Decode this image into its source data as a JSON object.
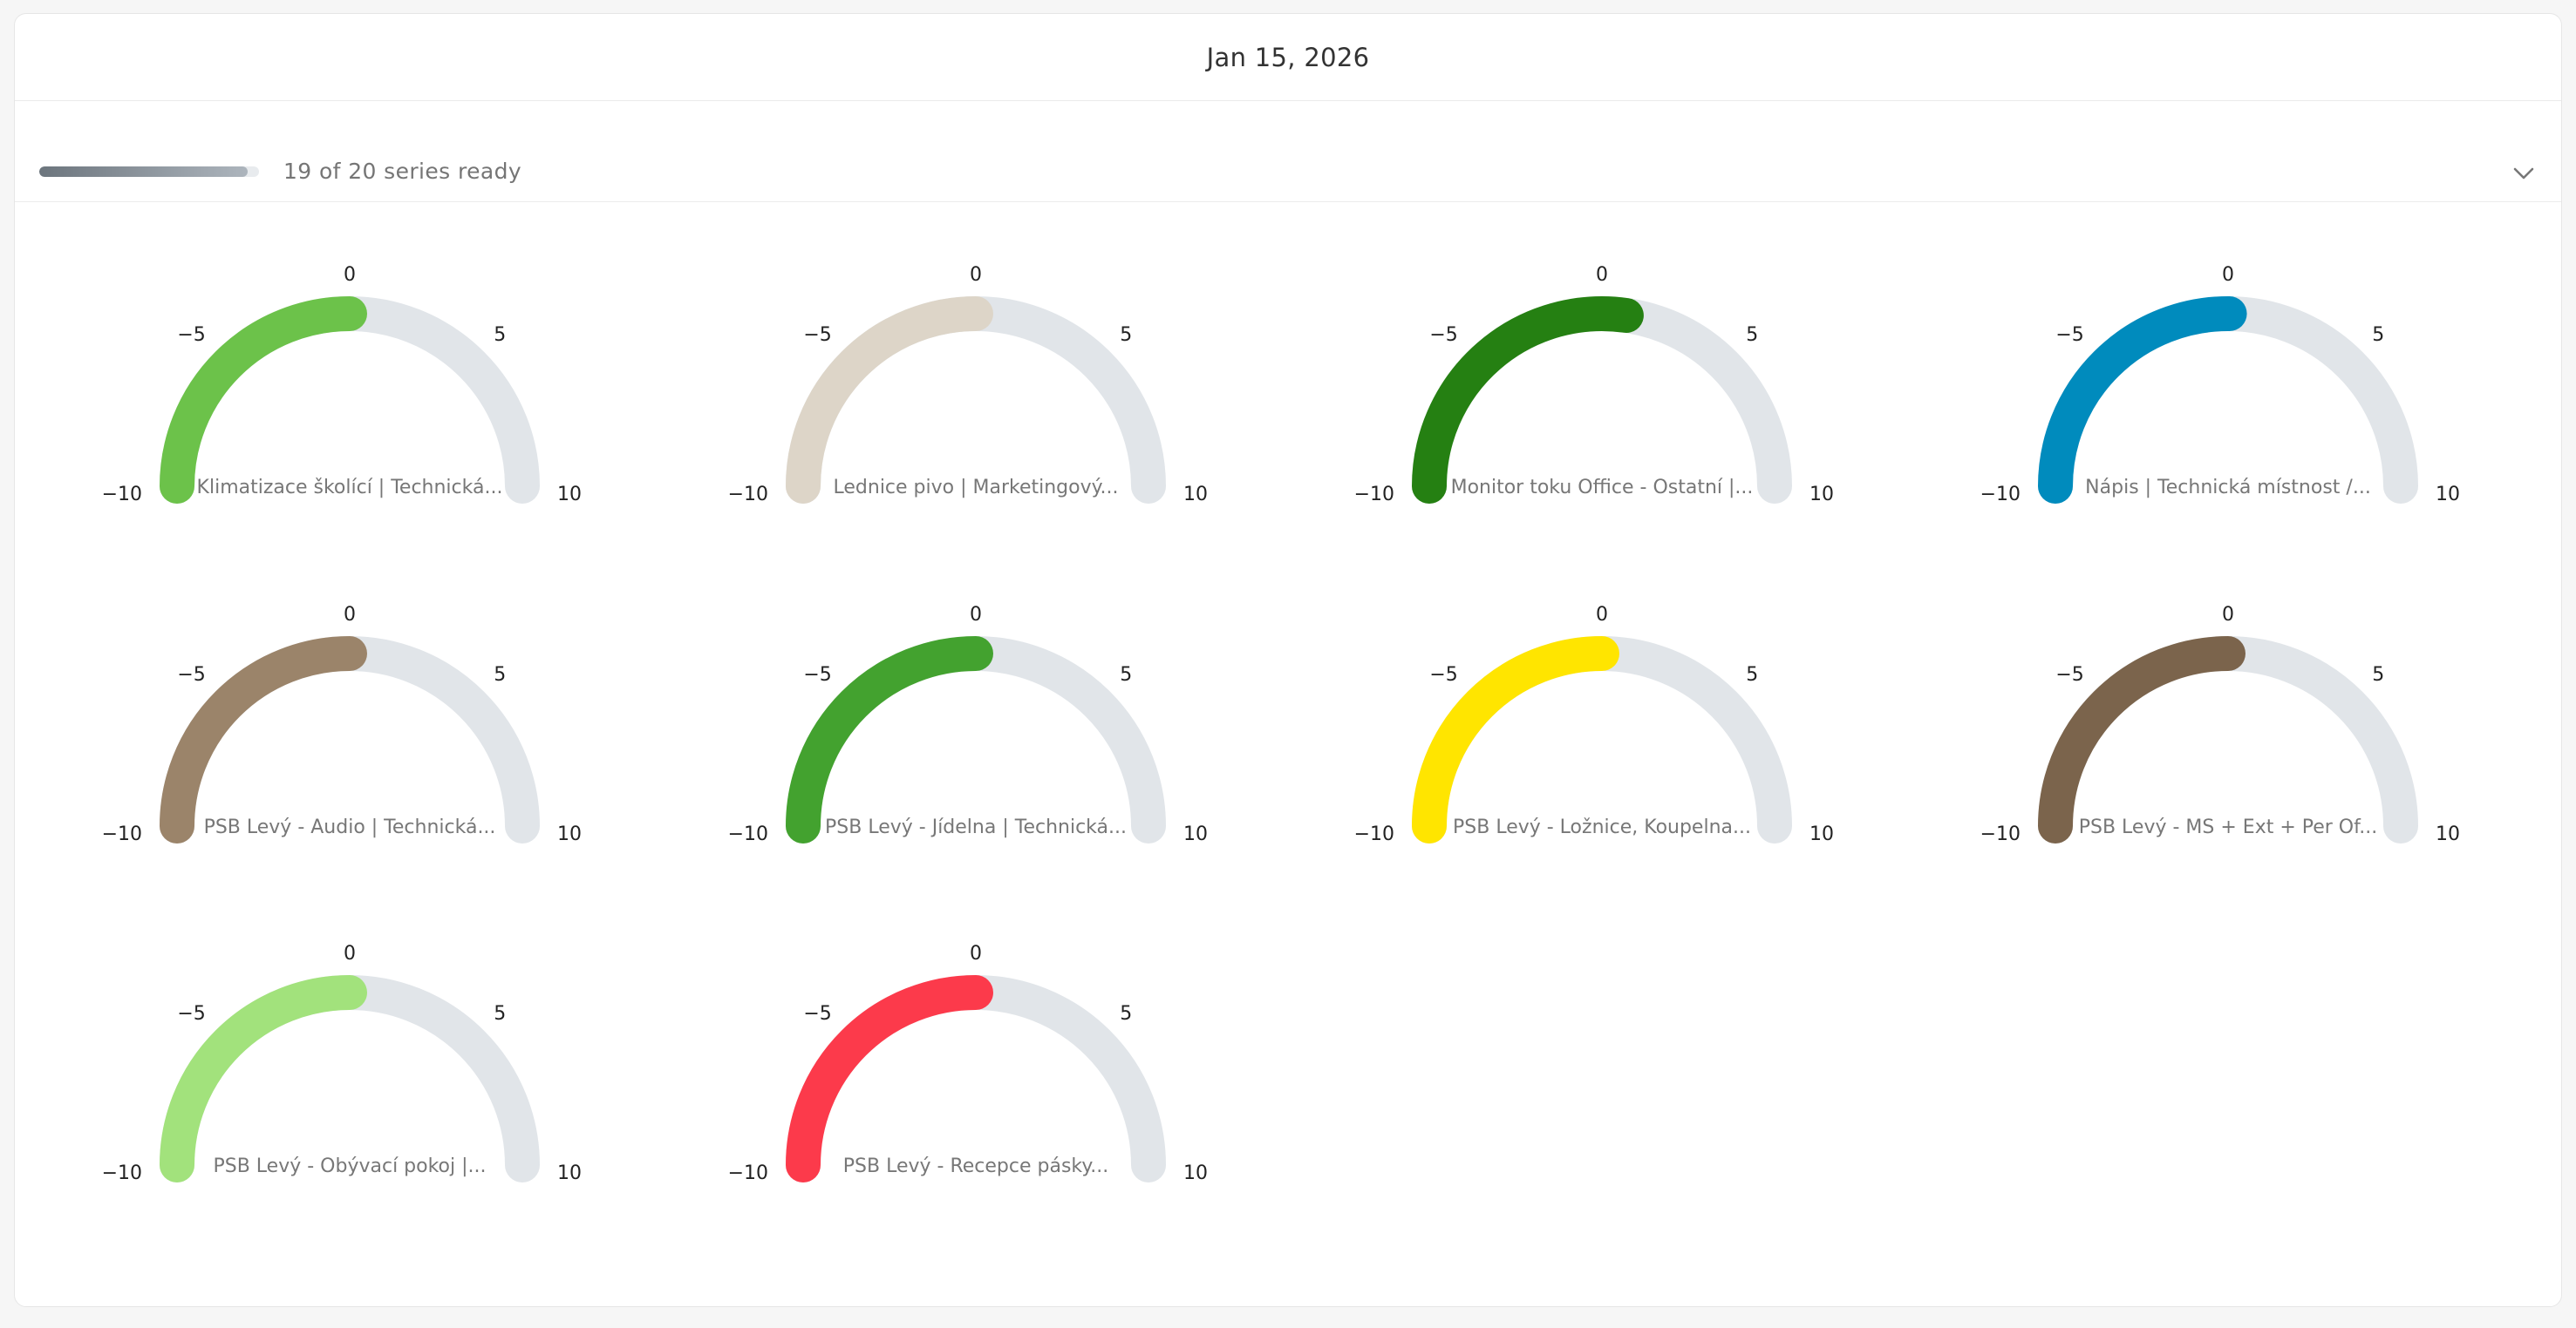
{
  "header": {
    "date": "Jan 15, 2026"
  },
  "status": {
    "progress": 0.95,
    "text": "19 of 20 series ready",
    "toggle_icon": "chevron-down-icon"
  },
  "chart_data": {
    "type": "gauge",
    "min": -10,
    "max": 10,
    "ticks": [
      "−10",
      "−5",
      "0",
      "5",
      "10"
    ],
    "track_color": "#e1e5e9",
    "gauges": [
      {
        "label": "Klimatizace školící | Technická...",
        "value": 0,
        "color": "#6cc24a"
      },
      {
        "label": "Lednice pivo | Marketingový...",
        "value": 0,
        "color": "#ddd5c8"
      },
      {
        "label": "Monitor toku Office - Ostatní |...",
        "value": 0.9,
        "color": "#258012"
      },
      {
        "label": "Nápis | Technická místnost /...",
        "value": 0.05,
        "color": "#008bbd"
      },
      {
        "label": "PSB Levý - Audio | Technická...",
        "value": 0,
        "color": "#9b846a"
      },
      {
        "label": "PSB Levý - Jídelna | Technická...",
        "value": 0,
        "color": "#43a22f"
      },
      {
        "label": "PSB Levý - Ložnice, Koupelna...",
        "value": 0,
        "color": "#ffe500"
      },
      {
        "label": "PSB Levý - MS + Ext + Per Of...",
        "value": 0,
        "color": "#7b644c"
      },
      {
        "label": "PSB Levý - Obývací pokoj |...",
        "value": 0,
        "color": "#a2e27c"
      },
      {
        "label": "PSB Levý - Recepce pásky...",
        "value": 0,
        "color": "#fc3a4b"
      }
    ]
  }
}
